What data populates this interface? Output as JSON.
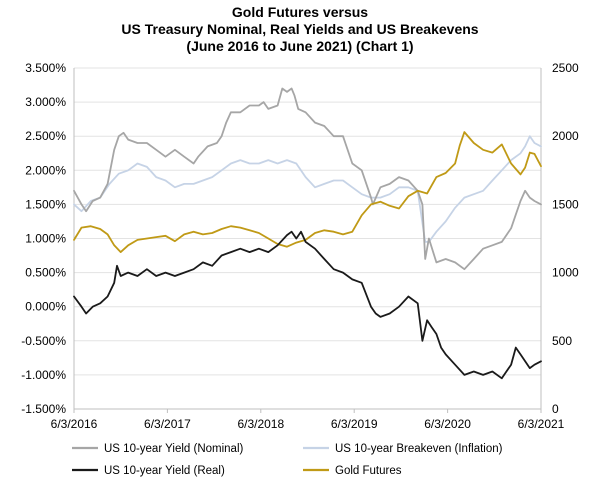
{
  "chart_data": {
    "type": "line",
    "title": [
      "Gold Futures versus",
      "US Treasury Nominal, Real Yields and US Breakevens",
      "(June 2016 to June 2021) (Chart 1)"
    ],
    "x_ticks": [
      "6/3/2016",
      "6/3/2017",
      "6/3/2018",
      "6/3/2019",
      "6/3/2020",
      "6/3/2021"
    ],
    "x_range": [
      2016.42,
      2021.42
    ],
    "y_left": {
      "range": [
        -1.5,
        3.5
      ],
      "ticks": [
        "-1.500%",
        "-1.000%",
        "-0.500%",
        "0.000%",
        "0.500%",
        "1.000%",
        "1.500%",
        "2.000%",
        "2.500%",
        "3.000%",
        "3.500%"
      ],
      "tick_values": [
        -1.5,
        -1.0,
        -0.5,
        0.0,
        0.5,
        1.0,
        1.5,
        2.0,
        2.5,
        3.0,
        3.5
      ]
    },
    "y_right": {
      "range": [
        0,
        2500
      ],
      "ticks": [
        "0",
        "500",
        "1000",
        "1500",
        "2000",
        "2500"
      ],
      "tick_values": [
        0,
        500,
        1000,
        1500,
        2000,
        2500
      ]
    },
    "series": [
      {
        "name": "US 10-year Yield (Nominal)",
        "color": "#a6a6a6",
        "axis": "left",
        "x": [
          2016.42,
          2016.5,
          2016.55,
          2016.62,
          2016.7,
          2016.78,
          2016.85,
          2016.9,
          2016.95,
          2017.0,
          2017.1,
          2017.2,
          2017.3,
          2017.4,
          2017.5,
          2017.6,
          2017.7,
          2017.75,
          2017.85,
          2017.95,
          2018.0,
          2018.05,
          2018.1,
          2018.2,
          2018.3,
          2018.4,
          2018.45,
          2018.5,
          2018.6,
          2018.65,
          2018.7,
          2018.75,
          2018.78,
          2018.82,
          2018.9,
          2019.0,
          2019.1,
          2019.2,
          2019.3,
          2019.4,
          2019.5,
          2019.6,
          2019.62,
          2019.7,
          2019.8,
          2019.9,
          2020.0,
          2020.1,
          2020.15,
          2020.18,
          2020.22,
          2020.3,
          2020.4,
          2020.5,
          2020.6,
          2020.7,
          2020.8,
          2020.9,
          2021.0,
          2021.1,
          2021.15,
          2021.2,
          2021.25,
          2021.3,
          2021.35,
          2021.42
        ],
        "y": [
          1.7,
          1.5,
          1.4,
          1.55,
          1.6,
          1.8,
          2.3,
          2.5,
          2.55,
          2.45,
          2.4,
          2.4,
          2.3,
          2.2,
          2.3,
          2.2,
          2.1,
          2.2,
          2.35,
          2.4,
          2.5,
          2.7,
          2.85,
          2.85,
          2.95,
          2.95,
          3.0,
          2.9,
          2.95,
          3.2,
          3.15,
          3.2,
          3.1,
          2.9,
          2.85,
          2.7,
          2.65,
          2.5,
          2.5,
          2.1,
          2.0,
          1.6,
          1.5,
          1.75,
          1.8,
          1.9,
          1.85,
          1.7,
          1.5,
          0.7,
          1.0,
          0.65,
          0.7,
          0.65,
          0.55,
          0.7,
          0.85,
          0.9,
          0.95,
          1.15,
          1.35,
          1.55,
          1.7,
          1.6,
          1.55,
          1.5
        ]
      },
      {
        "name": "US 10-year Breakeven (Inflation)",
        "color": "#c6d3e6",
        "axis": "left",
        "x": [
          2016.42,
          2016.5,
          2016.6,
          2016.7,
          2016.8,
          2016.9,
          2017.0,
          2017.1,
          2017.2,
          2017.3,
          2017.4,
          2017.5,
          2017.6,
          2017.7,
          2017.8,
          2017.9,
          2018.0,
          2018.1,
          2018.2,
          2018.3,
          2018.4,
          2018.5,
          2018.6,
          2018.7,
          2018.8,
          2018.9,
          2019.0,
          2019.1,
          2019.2,
          2019.3,
          2019.4,
          2019.5,
          2019.6,
          2019.7,
          2019.8,
          2019.9,
          2020.0,
          2020.1,
          2020.18,
          2020.22,
          2020.3,
          2020.4,
          2020.5,
          2020.6,
          2020.7,
          2020.8,
          2020.9,
          2021.0,
          2021.1,
          2021.2,
          2021.25,
          2021.3,
          2021.35,
          2021.42
        ],
        "y": [
          1.5,
          1.4,
          1.55,
          1.6,
          1.8,
          1.95,
          2.0,
          2.1,
          2.05,
          1.9,
          1.85,
          1.75,
          1.8,
          1.8,
          1.85,
          1.9,
          2.0,
          2.1,
          2.15,
          2.1,
          2.1,
          2.15,
          2.1,
          2.15,
          2.1,
          1.9,
          1.75,
          1.8,
          1.85,
          1.85,
          1.75,
          1.65,
          1.6,
          1.6,
          1.65,
          1.75,
          1.75,
          1.7,
          0.95,
          0.95,
          1.1,
          1.25,
          1.45,
          1.6,
          1.65,
          1.7,
          1.85,
          2.0,
          2.15,
          2.25,
          2.35,
          2.5,
          2.4,
          2.35
        ]
      },
      {
        "name": "US 10-year Yield (Real)",
        "color": "#1a1a1a",
        "axis": "left",
        "x": [
          2016.42,
          2016.5,
          2016.55,
          2016.62,
          2016.7,
          2016.78,
          2016.85,
          2016.88,
          2016.92,
          2017.0,
          2017.1,
          2017.2,
          2017.3,
          2017.4,
          2017.5,
          2017.6,
          2017.7,
          2017.8,
          2017.9,
          2018.0,
          2018.1,
          2018.2,
          2018.3,
          2018.4,
          2018.5,
          2018.6,
          2018.7,
          2018.75,
          2018.8,
          2018.85,
          2018.9,
          2019.0,
          2019.1,
          2019.2,
          2019.3,
          2019.4,
          2019.5,
          2019.6,
          2019.65,
          2019.7,
          2019.8,
          2019.9,
          2020.0,
          2020.1,
          2020.15,
          2020.2,
          2020.25,
          2020.3,
          2020.35,
          2020.4,
          2020.5,
          2020.6,
          2020.7,
          2020.8,
          2020.9,
          2021.0,
          2021.05,
          2021.1,
          2021.15,
          2021.2,
          2021.3,
          2021.35,
          2021.42
        ],
        "y": [
          0.15,
          0.0,
          -0.1,
          0.0,
          0.05,
          0.15,
          0.35,
          0.6,
          0.45,
          0.5,
          0.45,
          0.55,
          0.45,
          0.5,
          0.45,
          0.5,
          0.55,
          0.65,
          0.6,
          0.75,
          0.8,
          0.85,
          0.8,
          0.85,
          0.8,
          0.9,
          1.05,
          1.1,
          1.0,
          1.1,
          0.95,
          0.85,
          0.7,
          0.55,
          0.5,
          0.4,
          0.35,
          0.0,
          -0.1,
          -0.15,
          -0.1,
          0.0,
          0.15,
          0.05,
          -0.5,
          -0.2,
          -0.3,
          -0.4,
          -0.6,
          -0.7,
          -0.85,
          -1.0,
          -0.95,
          -1.0,
          -0.95,
          -1.05,
          -0.95,
          -0.85,
          -0.6,
          -0.7,
          -0.9,
          -0.85,
          -0.8
        ]
      },
      {
        "name": "Gold Futures",
        "color": "#c09a16",
        "axis": "right",
        "x": [
          2016.42,
          2016.5,
          2016.6,
          2016.7,
          2016.78,
          2016.85,
          2016.92,
          2017.0,
          2017.1,
          2017.2,
          2017.3,
          2017.4,
          2017.5,
          2017.6,
          2017.7,
          2017.8,
          2017.9,
          2018.0,
          2018.1,
          2018.2,
          2018.3,
          2018.4,
          2018.5,
          2018.6,
          2018.7,
          2018.8,
          2018.9,
          2019.0,
          2019.1,
          2019.2,
          2019.3,
          2019.4,
          2019.5,
          2019.6,
          2019.7,
          2019.8,
          2019.9,
          2020.0,
          2020.1,
          2020.2,
          2020.3,
          2020.4,
          2020.5,
          2020.55,
          2020.6,
          2020.7,
          2020.8,
          2020.9,
          2021.0,
          2021.1,
          2021.2,
          2021.25,
          2021.3,
          2021.35,
          2021.42
        ],
        "y": [
          1240,
          1330,
          1340,
          1320,
          1280,
          1200,
          1150,
          1200,
          1240,
          1250,
          1260,
          1270,
          1230,
          1280,
          1300,
          1280,
          1290,
          1320,
          1340,
          1330,
          1310,
          1290,
          1250,
          1210,
          1190,
          1220,
          1240,
          1290,
          1310,
          1300,
          1280,
          1300,
          1420,
          1500,
          1520,
          1490,
          1470,
          1560,
          1600,
          1580,
          1700,
          1730,
          1800,
          1930,
          2030,
          1950,
          1900,
          1880,
          1940,
          1800,
          1720,
          1770,
          1880,
          1870,
          1780
        ]
      }
    ]
  }
}
